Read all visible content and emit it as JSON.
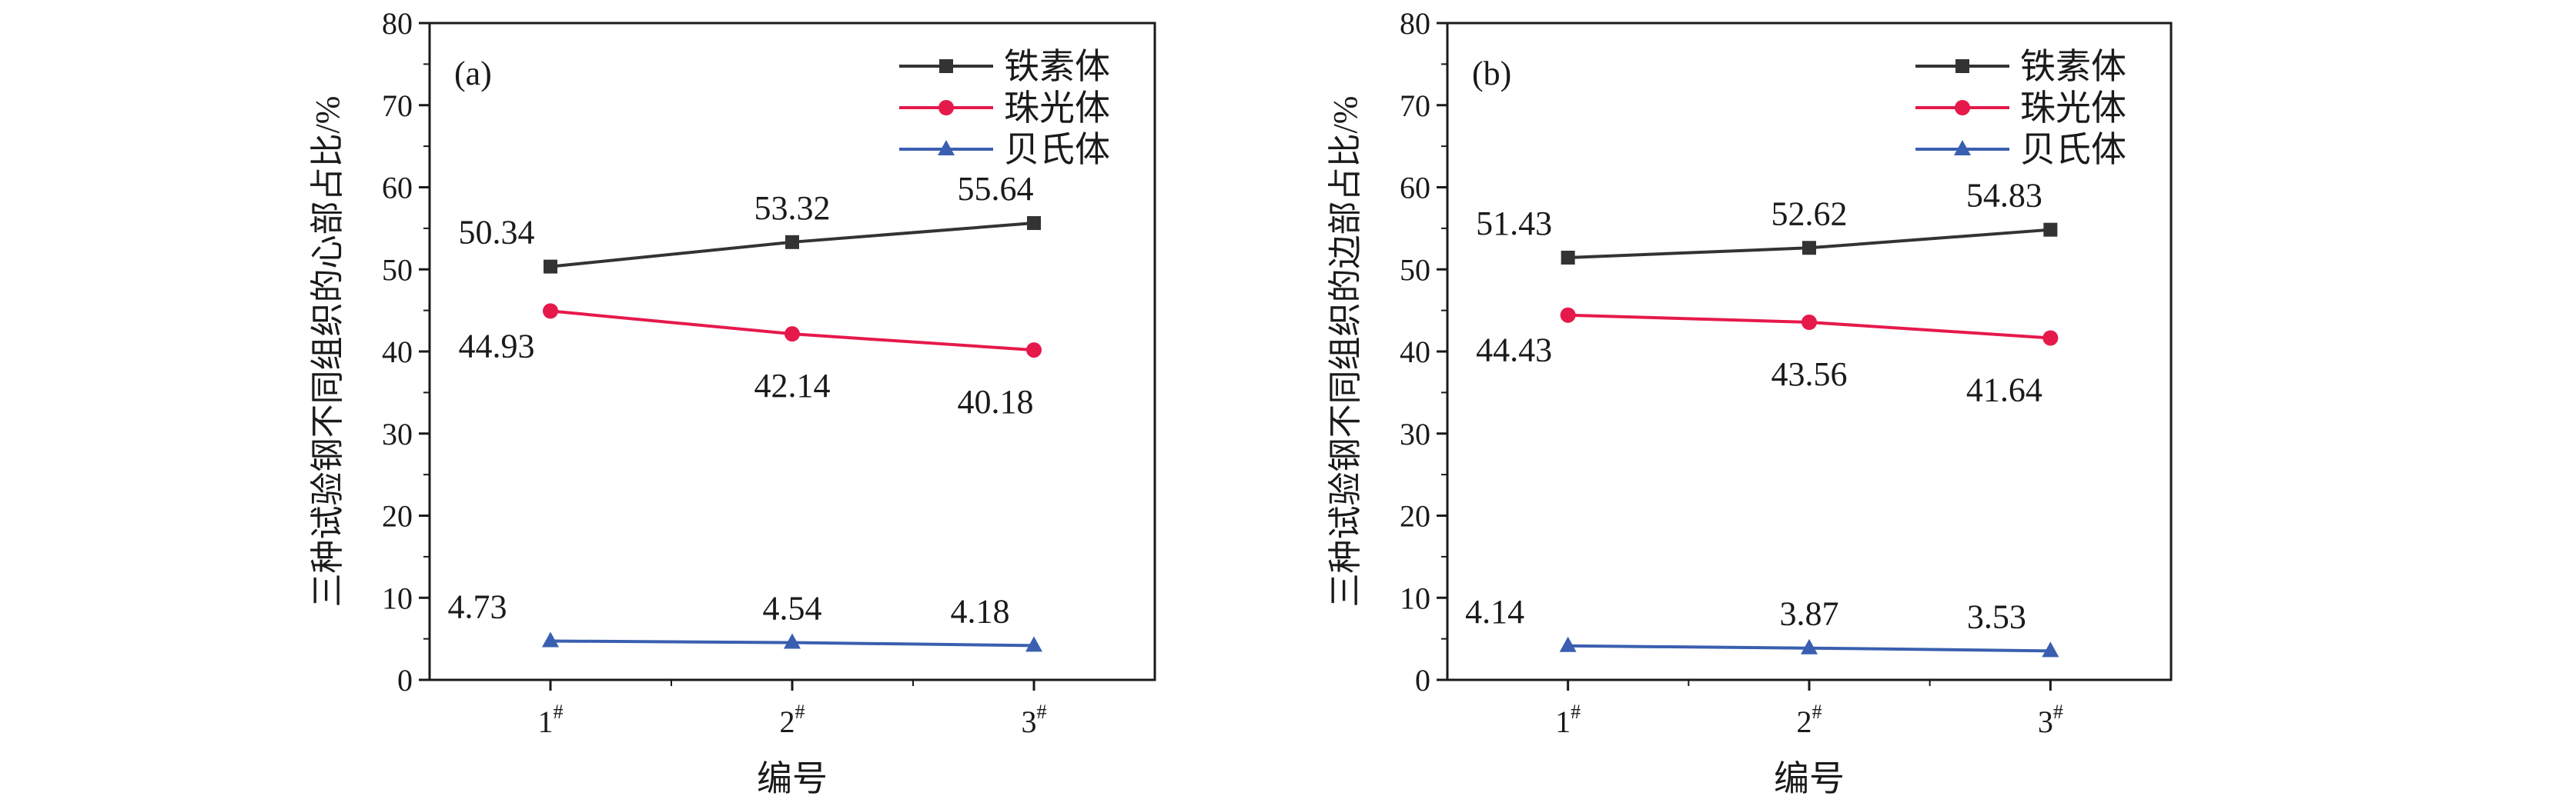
{
  "chart_data": [
    {
      "type": "line",
      "panel_label": "(a)",
      "xlabel": "编号",
      "ylabel": "三种试验钢不同组织的心部占比/%",
      "categories": [
        "1",
        "2",
        "3"
      ],
      "category_superscript": "#",
      "ylim": [
        0,
        80
      ],
      "yticks": [
        "0",
        "10",
        "20",
        "30",
        "40",
        "50",
        "60",
        "70",
        "80"
      ],
      "grid": false,
      "legend_position": "top-right",
      "series": [
        {
          "name": "铁素体",
          "values": [
            50.34,
            53.32,
            55.64
          ],
          "labels": [
            "50.34",
            "53.32",
            "55.64"
          ],
          "color": "#333333",
          "marker": "square"
        },
        {
          "name": "珠光体",
          "values": [
            44.93,
            42.14,
            40.18
          ],
          "labels": [
            "44.93",
            "42.14",
            "40.18"
          ],
          "color": "#e6194b",
          "marker": "circle"
        },
        {
          "name": "贝氏体",
          "values": [
            4.73,
            4.54,
            4.18
          ],
          "labels": [
            "4.73",
            "4.54",
            "4.18"
          ],
          "color": "#3a5fb0",
          "marker": "triangle"
        }
      ]
    },
    {
      "type": "line",
      "panel_label": "(b)",
      "xlabel": "编号",
      "ylabel": "三种试验钢不同组织的边部占比/%",
      "categories": [
        "1",
        "2",
        "3"
      ],
      "category_superscript": "#",
      "ylim": [
        0,
        80
      ],
      "yticks": [
        "0",
        "10",
        "20",
        "30",
        "40",
        "50",
        "60",
        "70",
        "80"
      ],
      "grid": false,
      "legend_position": "top-right",
      "series": [
        {
          "name": "铁素体",
          "values": [
            51.43,
            52.62,
            54.83
          ],
          "labels": [
            "51.43",
            "52.62",
            "54.83"
          ],
          "color": "#333333",
          "marker": "square"
        },
        {
          "name": "珠光体",
          "values": [
            44.43,
            43.56,
            41.64
          ],
          "labels": [
            "44.43",
            "43.56",
            "41.64"
          ],
          "color": "#e6194b",
          "marker": "circle"
        },
        {
          "name": "贝氏体",
          "values": [
            4.14,
            3.87,
            3.53
          ],
          "labels": [
            "4.14",
            "3.87",
            "3.53"
          ],
          "color": "#3a5fb0",
          "marker": "triangle"
        }
      ]
    }
  ]
}
